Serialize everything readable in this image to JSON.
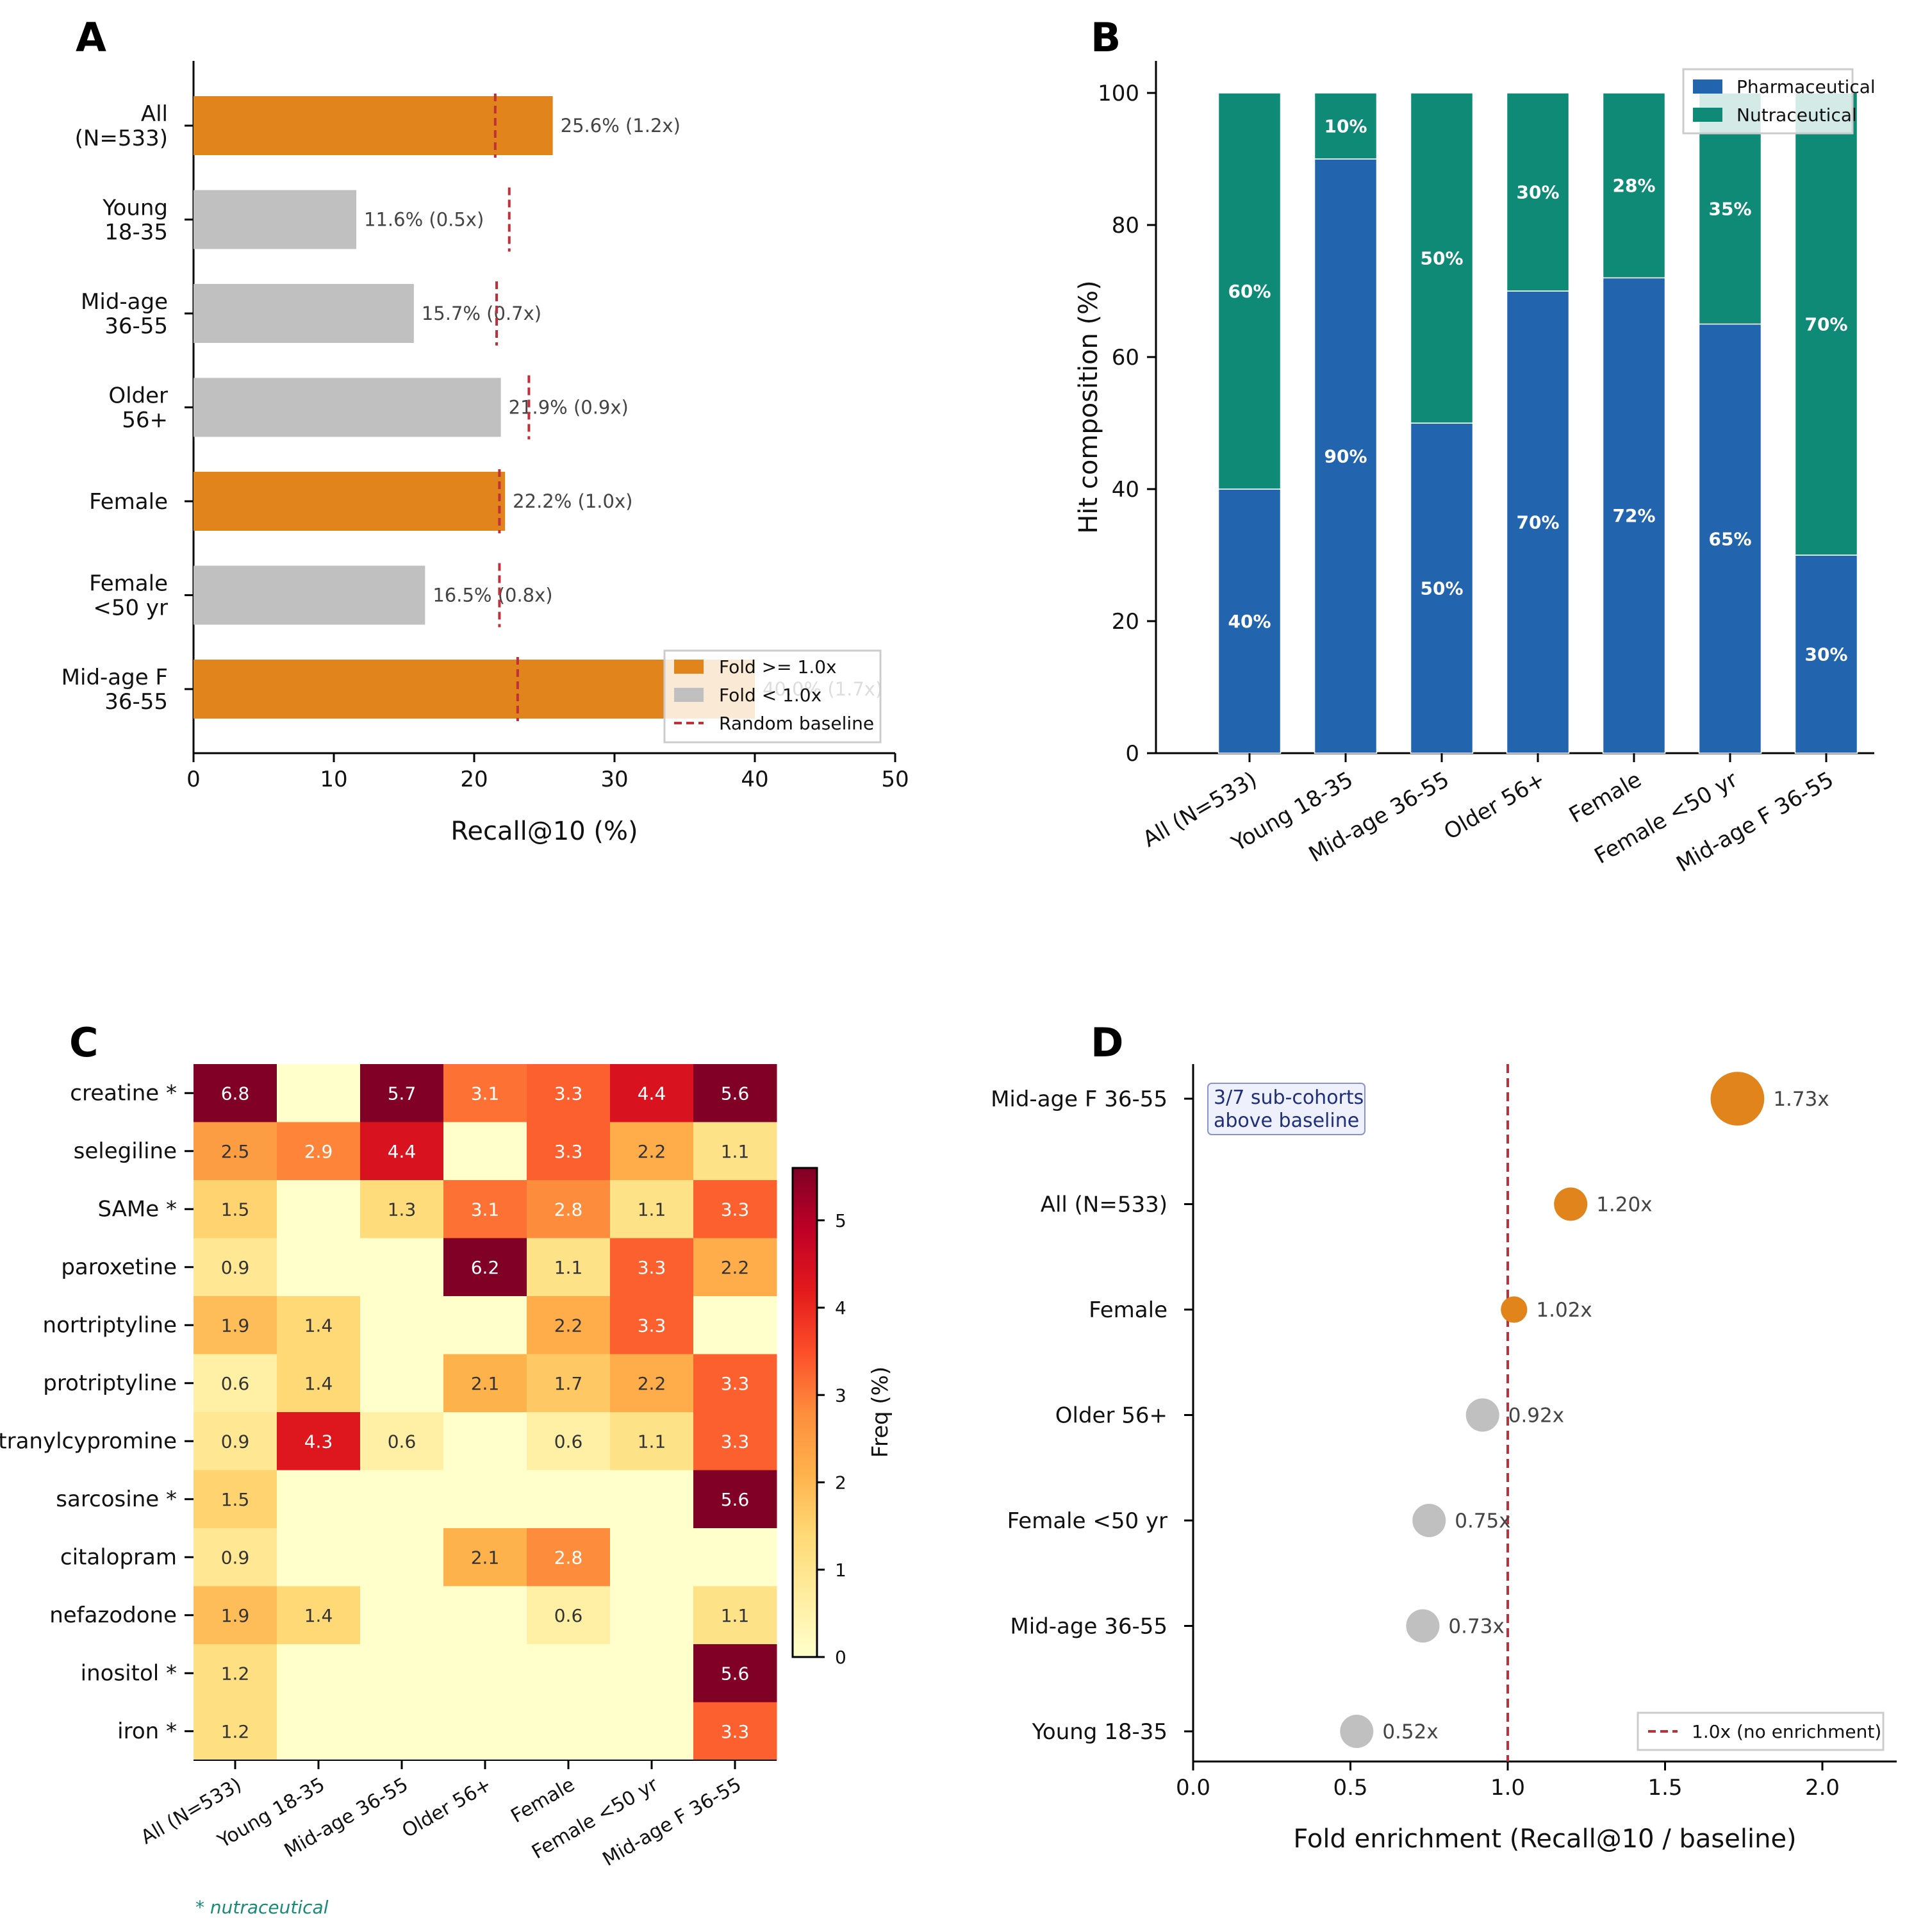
{
  "figure": {
    "panel_letters": [
      "A",
      "B",
      "C",
      "D"
    ]
  },
  "chart_data": [
    {
      "panel": "A",
      "type": "bar",
      "orientation": "horizontal",
      "categories": [
        "All\n(N=533)",
        "Young\n18-35",
        "Mid-age\n36-55",
        "Older\n56+",
        "Female",
        "Female\n<50 yr",
        "Mid-age F\n36-55"
      ],
      "values": [
        25.6,
        11.6,
        15.7,
        21.9,
        22.2,
        16.5,
        40.0
      ],
      "fold": [
        1.2,
        0.5,
        0.7,
        0.9,
        1.0,
        0.8,
        1.7
      ],
      "baseline": [
        21.5,
        22.5,
        21.6,
        23.9,
        21.8,
        21.8,
        23.1
      ],
      "bar_labels": [
        "25.6% (1.2x)",
        "11.6% (0.5x)",
        "15.7% (0.7x)",
        "21.9% (0.9x)",
        "22.2% (1.0x)",
        "16.5% (0.8x)",
        "40.0% (1.7x)"
      ],
      "xlabel": "Recall@10 (%)",
      "xlim": [
        0,
        50
      ],
      "xticks": [
        "0",
        "10",
        "20",
        "30",
        "40",
        "50"
      ],
      "legend": {
        "entries": [
          "Fold >= 1.0x",
          "Fold < 1.0x",
          "Random baseline"
        ],
        "placement": "lower-right"
      },
      "colors": {
        "above": "#E0841B",
        "below": "#C0C0C0",
        "baseline": "#C0303A"
      }
    },
    {
      "panel": "B",
      "type": "bar",
      "stacked": true,
      "categories": [
        "All (N=533)",
        "Young 18-35",
        "Mid-age 36-55",
        "Older 56+",
        "Female",
        "Female <50 yr",
        "Mid-age F 36-55"
      ],
      "series": [
        {
          "name": "Pharmaceutical",
          "values": [
            40,
            90,
            50,
            70,
            72,
            65,
            30
          ],
          "labels": [
            "40%",
            "90%",
            "50%",
            "70%",
            "72%",
            "65%",
            "30%"
          ],
          "color": "#2264AD"
        },
        {
          "name": "Nutraceutical",
          "values": [
            60,
            10,
            50,
            30,
            28,
            35,
            70
          ],
          "labels": [
            "60%",
            "10%",
            "50%",
            "30%",
            "28%",
            "35%",
            "70%"
          ],
          "color": "#0E8A76"
        }
      ],
      "ylabel": "Hit composition (%)",
      "ylim": [
        0,
        100
      ],
      "yticks": [
        "0",
        "20",
        "40",
        "60",
        "80",
        "100"
      ],
      "legend": {
        "placement": "top-right"
      }
    },
    {
      "panel": "C",
      "type": "heatmap",
      "rows": [
        "creatine *",
        "selegiline",
        "SAMe *",
        "paroxetine",
        "nortriptyline",
        "protriptyline",
        "tranylcypromine",
        "sarcosine *",
        "citalopram",
        "nefazodone",
        "inositol *",
        "iron *"
      ],
      "columns": [
        "All (N=533)",
        "Young 18-35",
        "Mid-age 36-55",
        "Older 56+",
        "Female",
        "Female <50 yr",
        "Mid-age F 36-55"
      ],
      "values": [
        [
          6.8,
          0,
          5.7,
          3.1,
          3.3,
          4.4,
          5.6
        ],
        [
          2.5,
          2.9,
          4.4,
          0,
          3.3,
          2.2,
          1.1
        ],
        [
          1.5,
          0,
          1.3,
          3.1,
          2.8,
          1.1,
          3.3
        ],
        [
          0.9,
          0,
          0,
          6.2,
          1.1,
          3.3,
          2.2
        ],
        [
          1.9,
          1.4,
          0,
          0,
          2.2,
          3.3,
          0
        ],
        [
          0.6,
          1.4,
          0,
          2.1,
          1.7,
          2.2,
          3.3
        ],
        [
          0.9,
          4.3,
          0.6,
          0,
          0.6,
          1.1,
          3.3
        ],
        [
          1.5,
          0,
          0,
          0,
          0,
          0,
          5.6
        ],
        [
          0.9,
          0,
          0,
          2.1,
          2.8,
          0,
          0
        ],
        [
          1.9,
          1.4,
          0,
          0,
          0.6,
          0,
          1.1
        ],
        [
          1.2,
          0,
          0,
          0,
          0,
          0,
          5.6
        ],
        [
          1.2,
          0,
          0,
          0,
          0,
          0,
          3.3
        ]
      ],
      "cell_labels": [
        [
          "6.8",
          "",
          "5.7",
          "3.1",
          "3.3",
          "4.4",
          "5.6"
        ],
        [
          "2.5",
          "2.9",
          "4.4",
          "",
          "3.3",
          "2.2",
          "1.1"
        ],
        [
          "1.5",
          "",
          "1.3",
          "3.1",
          "2.8",
          "1.1",
          "3.3"
        ],
        [
          "0.9",
          "",
          "",
          "6.2",
          "1.1",
          "3.3",
          "2.2"
        ],
        [
          "1.9",
          "1.4",
          "",
          "",
          "2.2",
          "3.3",
          ""
        ],
        [
          "0.6",
          "1.4",
          "",
          "2.1",
          "1.7",
          "2.2",
          "3.3"
        ],
        [
          "0.9",
          "4.3",
          "0.6",
          "",
          "0.6",
          "1.1",
          "3.3"
        ],
        [
          "1.5",
          "",
          "",
          "",
          "",
          "",
          "5.6"
        ],
        [
          "0.9",
          "",
          "",
          "2.1",
          "2.8",
          "",
          ""
        ],
        [
          "1.9",
          "1.4",
          "",
          "",
          "0.6",
          "",
          "1.1"
        ],
        [
          "1.2",
          "",
          "",
          "",
          "",
          "",
          "5.6"
        ],
        [
          "1.2",
          "",
          "",
          "",
          "",
          "",
          "3.3"
        ]
      ],
      "colorbar_label": "Freq (%)",
      "colorbar_range": [
        0,
        5.6
      ],
      "colorbar_ticks": [
        "0",
        "1",
        "2",
        "3",
        "4",
        "5"
      ],
      "colormap": "YlOrRd",
      "footnote": "* nutraceutical"
    },
    {
      "panel": "D",
      "type": "scatter",
      "categories": [
        "Mid-age F 36-55",
        "All (N=533)",
        "Female",
        "Older 56+",
        "Female <50 yr",
        "Mid-age 36-55",
        "Young 18-35"
      ],
      "values": [
        1.73,
        1.2,
        1.02,
        0.92,
        0.75,
        0.73,
        0.52
      ],
      "point_labels": [
        "1.73x",
        "1.20x",
        "1.02x",
        "0.92x",
        "0.75x",
        "0.73x",
        "0.52x"
      ],
      "xlabel": "Fold enrichment (Recall@10 / baseline)",
      "xlim": [
        0,
        2.25
      ],
      "xticks": [
        "0.0",
        "0.5",
        "1.0",
        "1.5",
        "2.0"
      ],
      "reference_line": 1.0,
      "legend": {
        "entries": [
          "1.0x (no enrichment)"
        ],
        "placement": "lower-right"
      },
      "annotation": [
        "3/7 sub-cohorts",
        "above baseline"
      ],
      "colors": {
        "above": "#E0841B",
        "below": "#C0C0C0",
        "line": "#C0303A"
      }
    }
  ]
}
